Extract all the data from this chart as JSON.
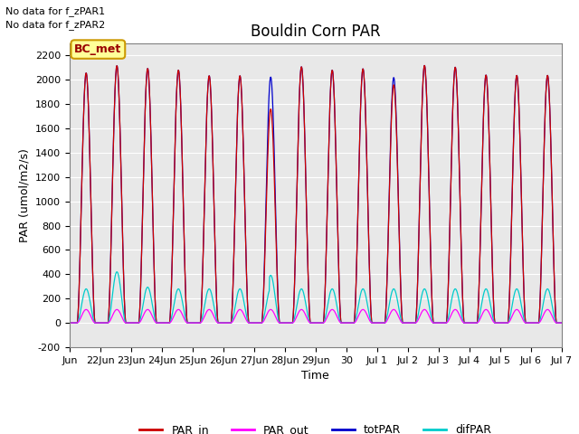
{
  "title": "Bouldin Corn PAR",
  "ylabel": "PAR (umol/m2/s)",
  "xlabel": "Time",
  "ylim": [
    -200,
    2300
  ],
  "yticks": [
    -200,
    0,
    200,
    400,
    600,
    800,
    1000,
    1200,
    1400,
    1600,
    1800,
    2000,
    2200
  ],
  "bg_color": "#e8e8e8",
  "no_data_text1": "No data for f_zPAR1",
  "no_data_text2": "No data for f_zPAR2",
  "annotation_box": "BC_met",
  "annotation_box_bg": "#ffff99",
  "annotation_box_text_color": "#990000",
  "annotation_box_edge_color": "#cc9900",
  "peak_totPAR": 2080,
  "peak_difPAR": 280,
  "peak_PAR_out": 110,
  "n_points_per_day": 96,
  "color_PAR_in": "#cc0000",
  "color_PAR_out": "#ff00ff",
  "color_totPAR": "#0000cc",
  "color_difPAR": "#00cccc",
  "tick_labels": [
    "Jun",
    "22Jun",
    "23Jun",
    "24Jun",
    "25Jun",
    "26Jun",
    "27Jun",
    "28Jun",
    "29Jun",
    "30",
    "Jul 1",
    "Jul 2",
    "Jul 3",
    "Jul 4",
    "Jul 5",
    "Jul 6",
    "Jul 7"
  ]
}
